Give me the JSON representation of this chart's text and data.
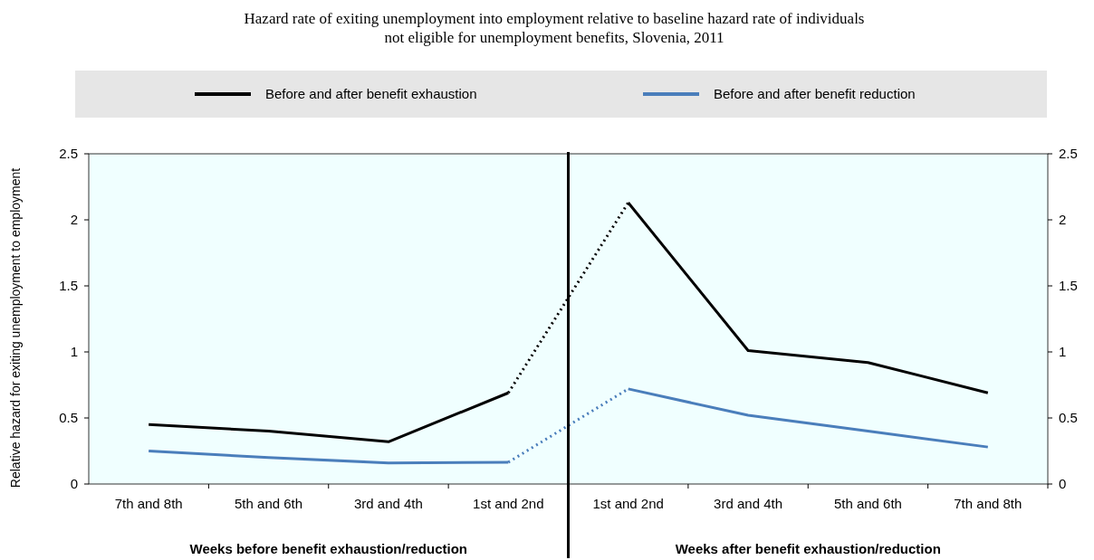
{
  "chart_data": {
    "type": "line",
    "title": "Hazard rate of exiting unemployment into employment relative to baseline hazard rate of individuals not eligible for unemployment benefits, Slovenia, 2011",
    "ylabel": "Relative hazard for exiting unemployment to employment",
    "categories": [
      "7th and 8th",
      "5th and 6th",
      "3rd and 4th",
      "1st and 2nd",
      "1st and 2nd",
      "3rd and 4th",
      "5th and 6th",
      "7th and 8th"
    ],
    "series": [
      {
        "name": "Before and after benefit exhaustion",
        "color": "#000000",
        "values": [
          0.45,
          0.4,
          0.32,
          0.69,
          null,
          null,
          null,
          null
        ]
      },
      {
        "color": "#000000",
        "line_style": "dotted",
        "values": [
          null,
          null,
          null,
          0.69,
          2.13,
          null,
          null,
          null
        ]
      },
      {
        "color": "#000000",
        "values": [
          null,
          null,
          null,
          null,
          2.13,
          1.01,
          0.92,
          0.69
        ]
      },
      {
        "name": "Before and after benefit reduction",
        "color": "#4a7ebb",
        "values": [
          0.25,
          0.2,
          0.16,
          0.165,
          null,
          null,
          null,
          null
        ]
      },
      {
        "color": "#4a7ebb",
        "line_style": "dotted",
        "values": [
          null,
          null,
          null,
          0.165,
          0.72,
          null,
          null,
          null
        ]
      },
      {
        "color": "#4a7ebb",
        "values": [
          null,
          null,
          null,
          null,
          0.72,
          0.52,
          0.4,
          0.28
        ]
      }
    ],
    "ylim": [
      0,
      2.5
    ],
    "yticks": [
      0,
      0.5,
      1,
      1.5,
      2,
      2.5
    ],
    "y2lim": [
      0,
      2.5
    ],
    "y2ticks": [
      0,
      0.5,
      1,
      1.5,
      2,
      2.5
    ],
    "annotations": [
      "Weeks before benefit exhaustion/reduction",
      "Weeks after benefit exhaustion/reduction"
    ],
    "legend": "top",
    "line_style": "solid",
    "marker": "none",
    "grid": false
  }
}
